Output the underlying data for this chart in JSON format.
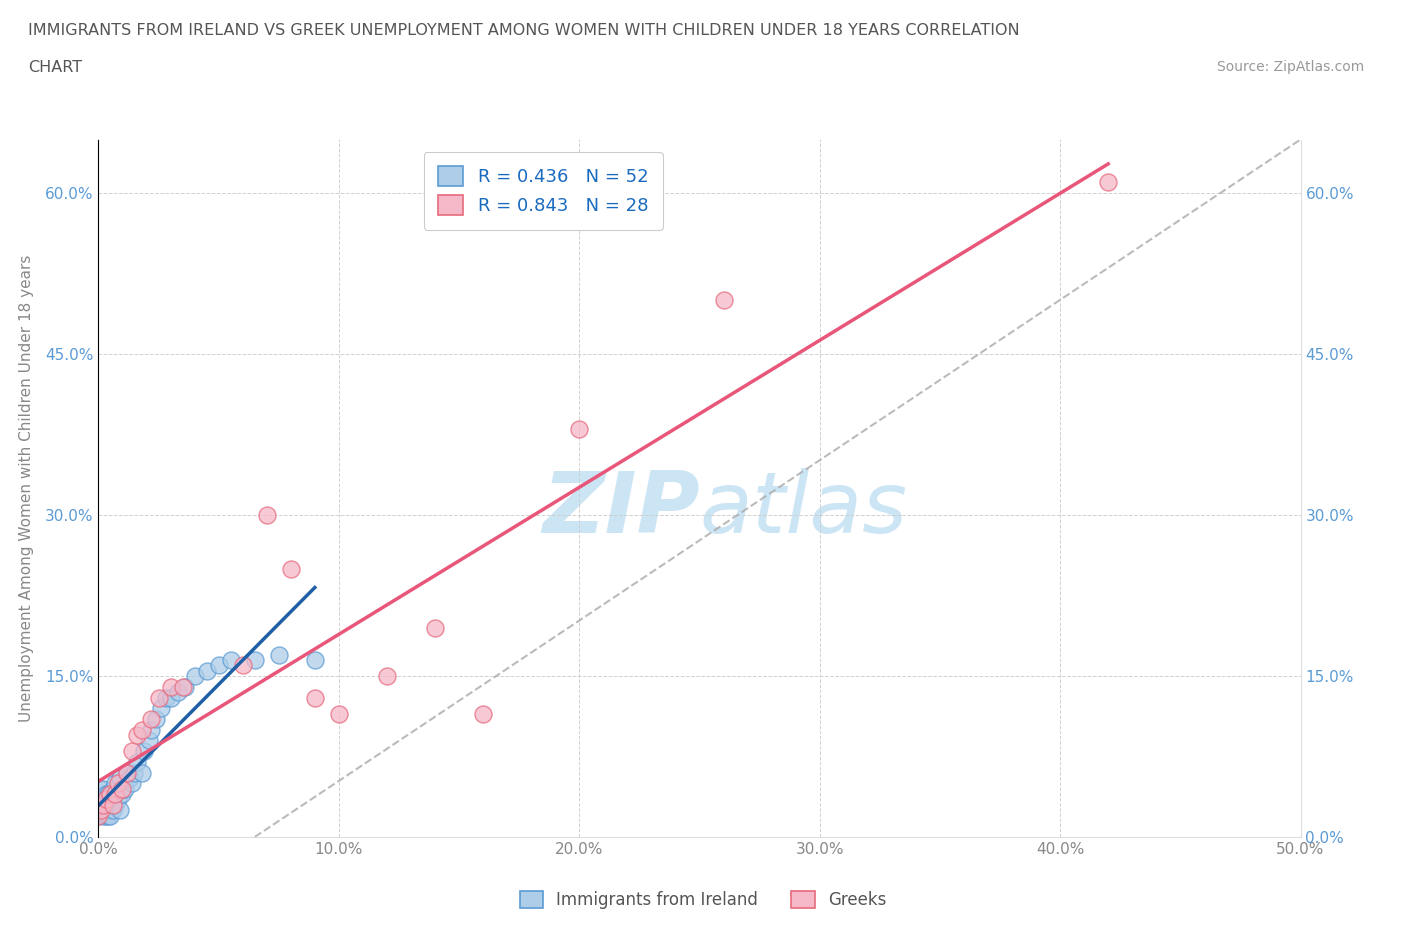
{
  "title_line1": "IMMIGRANTS FROM IRELAND VS GREEK UNEMPLOYMENT AMONG WOMEN WITH CHILDREN UNDER 18 YEARS CORRELATION",
  "title_line2": "CHART",
  "source": "Source: ZipAtlas.com",
  "ylabel": "Unemployment Among Women with Children Under 18 years",
  "xlim": [
    0,
    0.5
  ],
  "ylim": [
    0,
    0.65
  ],
  "xticks": [
    0.0,
    0.1,
    0.2,
    0.3,
    0.4,
    0.5
  ],
  "yticks": [
    0.0,
    0.15,
    0.3,
    0.45,
    0.6
  ],
  "xtick_labels": [
    "0.0%",
    "10.0%",
    "20.0%",
    "30.0%",
    "40.0%",
    "50.0%"
  ],
  "ytick_labels": [
    "0.0%",
    "15.0%",
    "30.0%",
    "45.0%",
    "60.0%"
  ],
  "ireland_color": "#aecde8",
  "ireland_edge": "#5b9bd5",
  "greek_color": "#f4b8c8",
  "greek_edge": "#e8697d",
  "ireland_R": 0.436,
  "ireland_N": 52,
  "greek_R": 0.843,
  "greek_N": 28,
  "ireland_trend_color": "#1f5fa6",
  "greek_trend_color": "#e8567a",
  "trend_dashed_color": "#aaaaaa",
  "legend_text_color": "#1a6bbf",
  "watermark_color": "#cce5f5",
  "ireland_x": [
    0.0,
    0.001,
    0.001,
    0.001,
    0.001,
    0.002,
    0.002,
    0.002,
    0.002,
    0.003,
    0.003,
    0.003,
    0.003,
    0.003,
    0.004,
    0.004,
    0.004,
    0.004,
    0.005,
    0.005,
    0.005,
    0.006,
    0.006,
    0.007,
    0.007,
    0.008,
    0.009,
    0.009,
    0.01,
    0.011,
    0.012,
    0.013,
    0.014,
    0.015,
    0.016,
    0.018,
    0.019,
    0.021,
    0.022,
    0.024,
    0.026,
    0.028,
    0.03,
    0.033,
    0.036,
    0.04,
    0.045,
    0.05,
    0.055,
    0.065,
    0.075,
    0.09
  ],
  "ireland_y": [
    0.02,
    0.025,
    0.03,
    0.035,
    0.045,
    0.02,
    0.025,
    0.035,
    0.045,
    0.02,
    0.025,
    0.03,
    0.035,
    0.04,
    0.02,
    0.025,
    0.03,
    0.04,
    0.02,
    0.03,
    0.04,
    0.025,
    0.045,
    0.03,
    0.05,
    0.035,
    0.025,
    0.055,
    0.04,
    0.045,
    0.06,
    0.055,
    0.05,
    0.06,
    0.07,
    0.06,
    0.08,
    0.09,
    0.1,
    0.11,
    0.12,
    0.13,
    0.13,
    0.135,
    0.14,
    0.15,
    0.155,
    0.16,
    0.165,
    0.165,
    0.17,
    0.165
  ],
  "greek_x": [
    0.0,
    0.001,
    0.002,
    0.003,
    0.005,
    0.006,
    0.007,
    0.008,
    0.01,
    0.012,
    0.014,
    0.016,
    0.018,
    0.022,
    0.025,
    0.03,
    0.035,
    0.06,
    0.07,
    0.08,
    0.09,
    0.1,
    0.12,
    0.14,
    0.16,
    0.2,
    0.26,
    0.42
  ],
  "greek_y": [
    0.02,
    0.025,
    0.03,
    0.035,
    0.04,
    0.03,
    0.04,
    0.05,
    0.045,
    0.06,
    0.08,
    0.095,
    0.1,
    0.11,
    0.13,
    0.14,
    0.14,
    0.16,
    0.3,
    0.25,
    0.13,
    0.115,
    0.15,
    0.195,
    0.115,
    0.38,
    0.5,
    0.61
  ]
}
